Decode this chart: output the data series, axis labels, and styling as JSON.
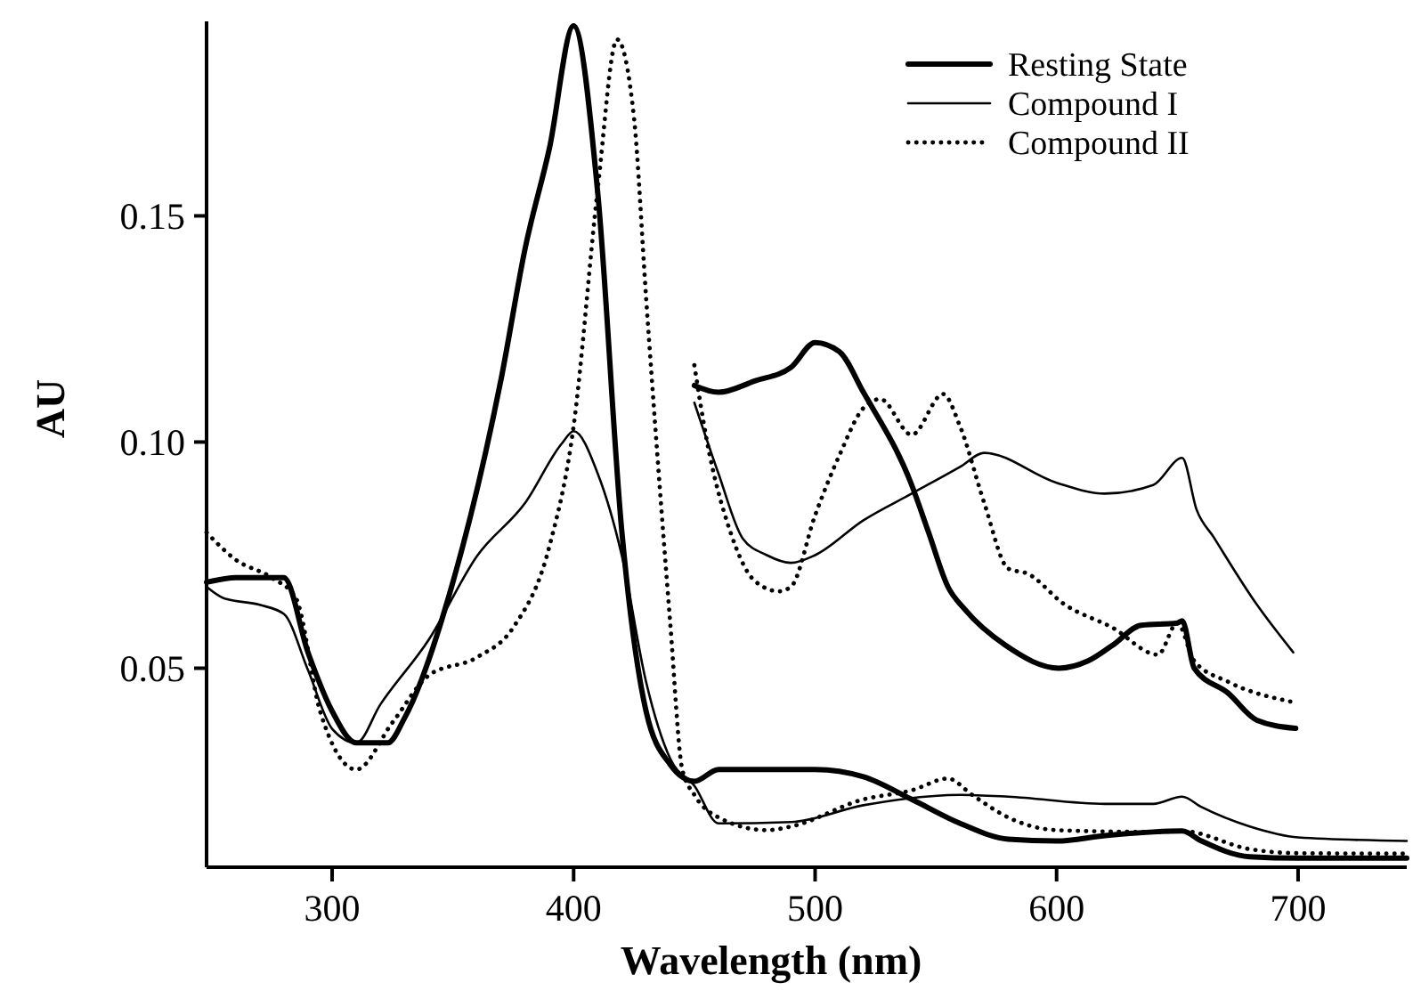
{
  "chart_data": {
    "type": "line",
    "xlabel": "Wavelength (nm)",
    "ylabel": "AU",
    "xlim": [
      248,
      745
    ],
    "xticks": [
      300,
      400,
      500,
      600,
      700
    ],
    "ylim": [
      0.006,
      0.193
    ],
    "yticks": [
      {
        "value": 0.05,
        "label": "0.05"
      },
      {
        "value": 0.1,
        "label": "0.10"
      },
      {
        "value": 0.15,
        "label": "0.15"
      }
    ],
    "grid": false,
    "legend": "top right",
    "marker": "none",
    "series": [
      {
        "name": "Resting State",
        "color": "#000000",
        "line_style": "solid",
        "x": [
          248,
          260,
          280,
          290,
          300,
          310,
          323,
          330,
          350,
          370,
          380,
          390,
          400,
          410,
          420,
          430,
          440,
          450,
          460,
          500,
          520,
          540,
          560,
          580,
          600,
          620,
          640,
          652,
          660,
          680,
          700,
          745
        ],
        "values": [
          0.069,
          0.07,
          0.07,
          0.0535,
          0.0405,
          0.0335,
          0.0335,
          0.039,
          0.069,
          0.114,
          0.143,
          0.165,
          0.192,
          0.155,
          0.08,
          0.0405,
          0.0287,
          0.025,
          0.0276,
          0.0276,
          0.026,
          0.021,
          0.0157,
          0.0122,
          0.0118,
          0.013,
          0.0138,
          0.014,
          0.0118,
          0.0083,
          0.008,
          0.008
        ]
      },
      {
        "name": "Compound I",
        "color": "#000000",
        "line_style": "solid",
        "x": [
          248,
          255,
          270,
          280,
          290,
          300,
          310,
          320,
          340,
          360,
          380,
          395,
          400,
          410,
          420,
          430,
          440,
          450,
          460,
          490,
          520,
          560,
          580,
          620,
          640,
          652,
          660,
          680,
          700,
          745
        ],
        "values": [
          0.068,
          0.0655,
          0.064,
          0.062,
          0.0496,
          0.0366,
          0.0335,
          0.042,
          0.0563,
          0.0748,
          0.0866,
          0.0996,
          0.1024,
          0.093,
          0.0748,
          0.047,
          0.03,
          0.024,
          0.0157,
          0.016,
          0.0197,
          0.022,
          0.0216,
          0.02,
          0.02,
          0.0216,
          0.0193,
          0.015,
          0.0126,
          0.0118
        ]
      },
      {
        "name": "Compound II",
        "color": "#000000",
        "line_style": "dotted",
        "x": [
          248,
          260,
          275,
          285,
          295,
          310,
          325,
          340,
          360,
          375,
          390,
          400,
          410,
          418,
          425,
          430,
          440,
          445,
          450,
          460,
          480,
          490,
          520,
          540,
          555,
          565,
          580,
          600,
          640,
          652,
          680,
          700,
          745
        ],
        "values": [
          0.08,
          0.074,
          0.07,
          0.0655,
          0.0405,
          0.0276,
          0.038,
          0.0484,
          0.0524,
          0.059,
          0.077,
          0.1035,
          0.156,
          0.189,
          0.1717,
          0.132,
          0.06,
          0.0276,
          0.022,
          0.017,
          0.0142,
          0.015,
          0.021,
          0.023,
          0.0256,
          0.022,
          0.017,
          0.0142,
          0.0138,
          0.014,
          0.01,
          0.0091,
          0.009
        ]
      },
      {
        "color": "#000000",
        "line_style": "solid",
        "x": [
          450,
          460,
          475,
          490,
          500,
          510,
          520,
          540,
          547,
          555,
          562,
          579,
          601,
          613,
          623,
          635,
          650,
          652,
          657,
          671,
          683,
          699
        ],
        "values": [
          0.1125,
          0.111,
          0.1135,
          0.1165,
          0.122,
          0.12,
          0.111,
          0.0905,
          0.08,
          0.068,
          0.063,
          0.055,
          0.05,
          0.0516,
          0.055,
          0.0595,
          0.06,
          0.0605,
          0.05,
          0.0445,
          0.0385,
          0.0367
        ]
      },
      {
        "color": "#000000",
        "line_style": "solid",
        "x": [
          450,
          460,
          470,
          480,
          490,
          500,
          520,
          540,
          560,
          570,
          600,
          620,
          640,
          652,
          658,
          665,
          683,
          698
        ],
        "values": [
          0.1087,
          0.093,
          0.0787,
          0.075,
          0.0733,
          0.075,
          0.0827,
          0.0886,
          0.0945,
          0.0976,
          0.091,
          0.0886,
          0.0905,
          0.0965,
          0.085,
          0.079,
          0.064,
          0.0535
        ]
      },
      {
        "color": "#000000",
        "line_style": "dotted",
        "x": [
          450,
          455,
          465,
          475,
          485,
          490,
          500,
          510,
          520,
          527,
          540,
          553,
          560,
          570,
          580,
          588,
          603,
          623,
          642,
          650,
          657,
          671,
          698
        ],
        "values": [
          0.117,
          0.1008,
          0.08,
          0.0693,
          0.067,
          0.068,
          0.0838,
          0.097,
          0.1075,
          0.1095,
          0.1016,
          0.1106,
          0.1035,
          0.0866,
          0.072,
          0.0709,
          0.0642,
          0.059,
          0.053,
          0.06,
          0.0516,
          0.047,
          0.0425
        ]
      }
    ]
  }
}
